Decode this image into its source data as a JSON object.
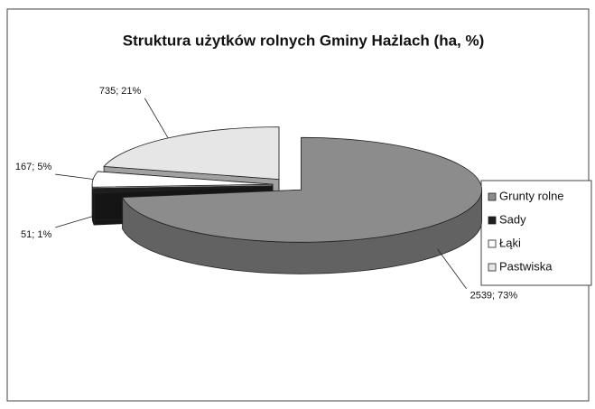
{
  "chart_data": {
    "type": "pie3d",
    "title": "Struktura użytków rolnych Gminy Hażlach (ha, %)",
    "categories": [
      "Grunty rolne",
      "Sady",
      "Łąki",
      "Pastwiska"
    ],
    "values": [
      2539,
      51,
      167,
      735
    ],
    "value_labels": [
      "2539; 73%",
      "51; 1%",
      "167; 5%",
      "735; 21%"
    ],
    "colors": [
      "#8c8c8c",
      "#1e1e1e",
      "#ffffff",
      "#e6e6e6"
    ],
    "legend": "right"
  }
}
